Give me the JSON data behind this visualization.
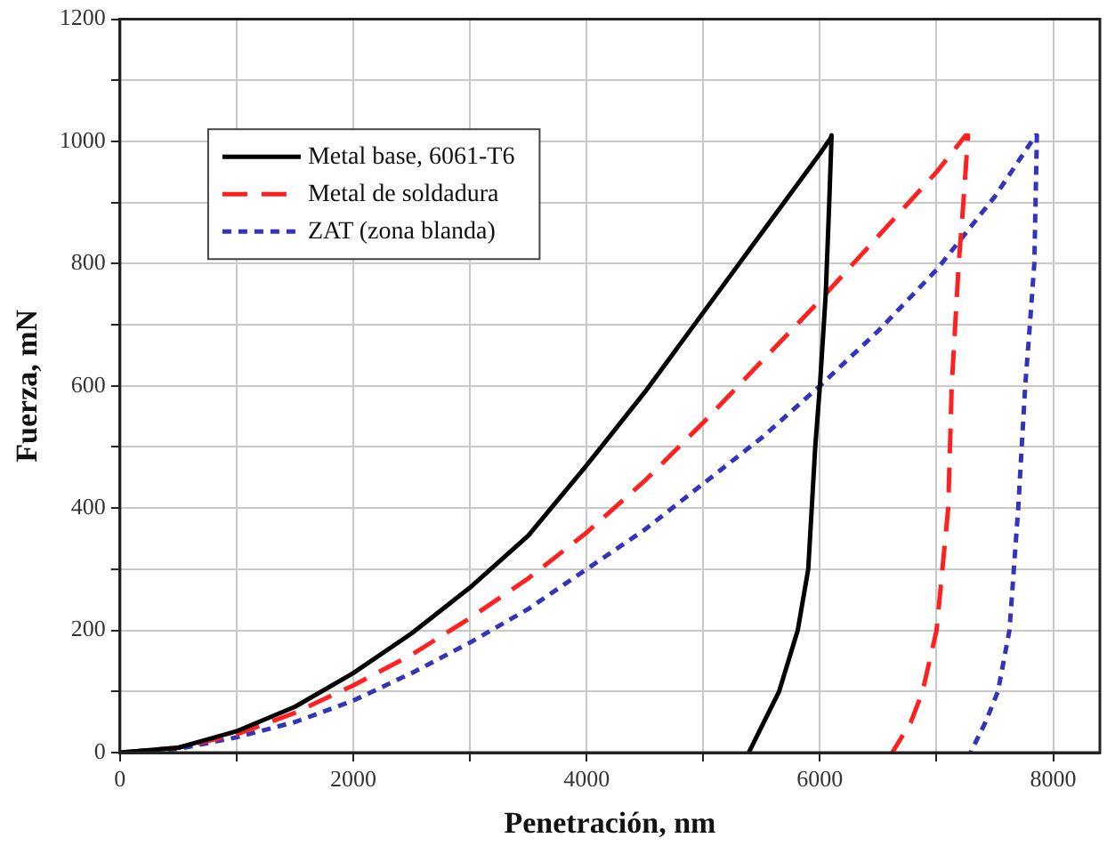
{
  "chart_data": {
    "type": "line",
    "xlabel": "Penetración, nm",
    "ylabel": "Fuerza, mN",
    "xlim": [
      0,
      8400
    ],
    "ylim": [
      0,
      1200
    ],
    "xticks": [
      0,
      {
        "value": 1000,
        "label": null
      },
      2000,
      {
        "value": 3000,
        "label": null
      },
      4000,
      {
        "value": 5000,
        "label": null
      },
      6000,
      {
        "value": 7000,
        "label": null
      },
      8000
    ],
    "yticks": [
      0,
      {
        "value": 100,
        "label": null
      },
      200,
      {
        "value": 300,
        "label": null
      },
      400,
      {
        "value": 500,
        "label": null
      },
      600,
      {
        "value": 700,
        "label": null
      },
      800,
      {
        "value": 900,
        "label": null
      },
      1000,
      {
        "value": 1100,
        "label": null
      },
      1200
    ],
    "grid": true,
    "legend": "top left",
    "marker": "none",
    "series": [
      {
        "name": "Metal base, 6061-T6",
        "color": "#000000",
        "line_style": "solid",
        "x": [
          0,
          500,
          1000,
          1500,
          2000,
          2500,
          3000,
          3500,
          4000,
          4500,
          5000,
          5500,
          6000,
          6090,
          6100,
          6080,
          6050,
          6000,
          5960,
          5900,
          5810,
          5730,
          5650,
          5520,
          5390
        ],
        "values": [
          0,
          8,
          35,
          75,
          130,
          195,
          270,
          355,
          470,
          590,
          720,
          850,
          980,
          1005,
          1010,
          900,
          750,
          600,
          500,
          300,
          200,
          150,
          100,
          50,
          0
        ]
      },
      {
        "name": "Metal de soldadura",
        "color": "#ff2020",
        "line_style": "dashed",
        "x": [
          0,
          500,
          1000,
          1500,
          2000,
          2500,
          3000,
          3500,
          4000,
          4500,
          5000,
          5500,
          6000,
          6500,
          7000,
          7250,
          7270,
          7230,
          7190,
          7160,
          7130,
          7100,
          7000,
          6880,
          6780,
          6620
        ],
        "values": [
          0,
          8,
          30,
          65,
          110,
          160,
          220,
          285,
          360,
          445,
          540,
          640,
          740,
          845,
          950,
          1010,
          1010,
          900,
          800,
          700,
          600,
          400,
          200,
          100,
          50,
          0
        ]
      },
      {
        "name": "ZAT (zona blanda)",
        "color": "#3333bb",
        "line_style": "dotted",
        "x": [
          0,
          500,
          1000,
          1500,
          2000,
          2500,
          3000,
          3500,
          4000,
          4500,
          5000,
          5500,
          6000,
          6500,
          7000,
          7500,
          7850,
          7860,
          7838,
          7800,
          7760,
          7700,
          7625,
          7526,
          7420,
          7292
        ],
        "values": [
          0,
          6,
          25,
          50,
          85,
          130,
          180,
          235,
          300,
          365,
          440,
          515,
          600,
          690,
          790,
          910,
          1010,
          1010,
          800,
          700,
          600,
          400,
          200,
          100,
          50,
          0
        ]
      }
    ]
  }
}
